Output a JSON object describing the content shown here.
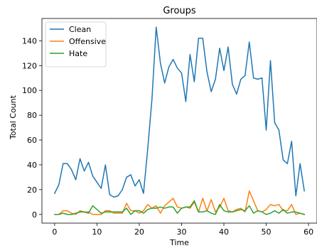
{
  "chart_data": {
    "type": "line",
    "title": "Groups",
    "xlabel": "Time",
    "ylabel": "Total Count",
    "xlim": [
      -3,
      62
    ],
    "ylim": [
      -7,
      158
    ],
    "xticks": [
      0,
      10,
      20,
      30,
      40,
      50,
      60
    ],
    "yticks": [
      0,
      20,
      40,
      60,
      80,
      100,
      120,
      140
    ],
    "grid": false,
    "legend_position": "top-left",
    "x": [
      0,
      1,
      2,
      3,
      4,
      5,
      6,
      7,
      8,
      9,
      10,
      11,
      12,
      13,
      14,
      15,
      16,
      17,
      18,
      19,
      20,
      21,
      22,
      23,
      24,
      25,
      26,
      27,
      28,
      29,
      30,
      31,
      32,
      33,
      34,
      35,
      36,
      37,
      38,
      39,
      40,
      41,
      42,
      43,
      44,
      45,
      46,
      47,
      48,
      49,
      50,
      51,
      52,
      53,
      54,
      55,
      56,
      57,
      58,
      59
    ],
    "series": [
      {
        "name": "Clean",
        "color": "#1f77b4",
        "values": [
          17,
          24,
          41,
          41,
          36,
          28,
          45,
          35,
          42,
          31,
          26,
          21,
          40,
          16,
          14,
          15,
          20,
          30,
          32,
          23,
          28,
          17,
          53,
          93,
          151,
          122,
          106,
          119,
          125,
          118,
          114,
          91,
          129,
          107,
          142,
          142,
          115,
          99,
          109,
          134,
          116,
          135,
          105,
          97,
          109,
          112,
          139,
          110,
          109,
          110,
          68,
          124,
          74,
          68,
          44,
          41,
          59,
          15,
          41,
          19
        ]
      },
      {
        "name": "Offensive",
        "color": "#ff7f0e",
        "values": [
          0,
          0,
          3,
          3,
          1,
          0,
          3,
          2,
          2,
          0,
          0,
          0,
          3,
          3,
          1,
          1,
          1,
          9,
          3,
          3,
          1,
          3,
          8,
          5,
          7,
          1,
          7,
          10,
          13,
          6,
          5,
          6,
          5,
          10,
          2,
          13,
          3,
          12,
          2,
          6,
          13,
          3,
          2,
          4,
          5,
          2,
          19,
          11,
          3,
          2,
          4,
          8,
          7,
          8,
          3,
          3,
          8,
          0,
          1,
          0
        ]
      },
      {
        "name": "Hate",
        "color": "#2ca02c",
        "values": [
          0,
          0,
          1,
          0,
          0,
          1,
          2,
          2,
          1,
          7,
          4,
          1,
          2,
          2,
          2,
          2,
          2,
          5,
          0,
          3,
          3,
          1,
          4,
          5,
          5,
          6,
          5,
          6,
          6,
          1,
          5,
          6,
          6,
          11,
          2,
          2,
          3,
          1,
          0,
          8,
          3,
          2,
          2,
          3,
          4,
          3,
          7,
          1,
          3,
          2,
          0,
          1,
          3,
          1,
          4,
          1,
          2,
          2,
          1,
          0
        ]
      }
    ]
  }
}
